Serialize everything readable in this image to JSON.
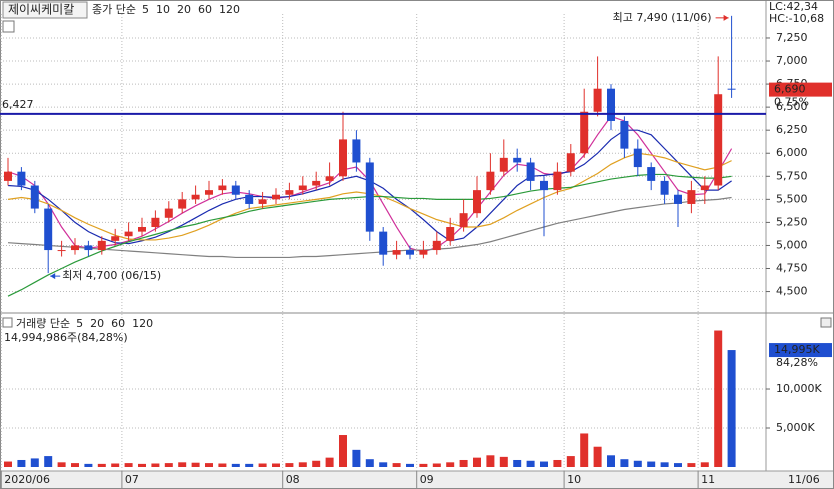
{
  "chart_data": [
    {
      "type": "candlestick",
      "title": "제이씨케미칼",
      "legend_prefix": "종가 단순",
      "categories": [
        "2020/06",
        null,
        null,
        null,
        null,
        null,
        null,
        null,
        null,
        "07",
        null,
        null,
        null,
        null,
        null,
        null,
        null,
        null,
        null,
        null,
        null,
        "08",
        null,
        null,
        null,
        null,
        null,
        null,
        null,
        null,
        null,
        "09",
        null,
        null,
        null,
        null,
        null,
        null,
        null,
        null,
        null,
        null,
        "10",
        null,
        null,
        null,
        null,
        null,
        null,
        null,
        null,
        null,
        "11",
        null,
        null
      ],
      "last_date_label": "11/06",
      "open": [
        5700,
        5800,
        5650,
        5400,
        4950,
        4950,
        5000,
        4950,
        5050,
        5100,
        5150,
        5200,
        5300,
        5400,
        5500,
        5550,
        5600,
        5650,
        5550,
        5450,
        5500,
        5550,
        5600,
        5650,
        5700,
        5750,
        6150,
        5900,
        5150,
        4900,
        4950,
        4900,
        4950,
        5050,
        5200,
        5350,
        5600,
        5800,
        5950,
        5900,
        5700,
        5600,
        5800,
        6000,
        6450,
        6700,
        6350,
        6050,
        5850,
        5700,
        5550,
        5450,
        5600,
        5650,
        6700
      ],
      "high": [
        5950,
        5850,
        5700,
        5450,
        5050,
        5080,
        5050,
        5100,
        5180,
        5250,
        5300,
        5380,
        5480,
        5580,
        5650,
        5700,
        5720,
        5700,
        5600,
        5580,
        5620,
        5680,
        5750,
        5800,
        5900,
        6450,
        6250,
        5950,
        5200,
        5050,
        5000,
        5050,
        5150,
        5300,
        5500,
        5750,
        6000,
        6150,
        6050,
        5950,
        5750,
        5900,
        6100,
        6700,
        7050,
        6750,
        6400,
        6150,
        5900,
        5750,
        5600,
        5700,
        5750,
        7050,
        7490
      ],
      "low": [
        5650,
        5600,
        5350,
        4700,
        4880,
        4900,
        4880,
        4900,
        5000,
        5050,
        5100,
        5150,
        5250,
        5350,
        5450,
        5500,
        5550,
        5500,
        5400,
        5400,
        5450,
        5500,
        5550,
        5600,
        5650,
        5700,
        5800,
        5050,
        4780,
        4850,
        4850,
        4860,
        4900,
        5000,
        5150,
        5300,
        5550,
        5750,
        5800,
        5600,
        5100,
        5550,
        5750,
        5950,
        6400,
        6250,
        5950,
        5750,
        5600,
        5450,
        5200,
        5350,
        5450,
        5600,
        6600
      ],
      "close": [
        5800,
        5650,
        5400,
        4950,
        4950,
        5000,
        4950,
        5050,
        5100,
        5150,
        5200,
        5300,
        5400,
        5500,
        5550,
        5600,
        5650,
        5550,
        5450,
        5500,
        5550,
        5600,
        5650,
        5700,
        5750,
        6150,
        5900,
        5150,
        4900,
        4950,
        4900,
        4950,
        5050,
        5200,
        5350,
        5600,
        5800,
        5950,
        5900,
        5700,
        5600,
        5800,
        6000,
        6450,
        6700,
        6350,
        6050,
        5850,
        5700,
        5550,
        5450,
        5600,
        5650,
        6640,
        6690
      ],
      "up_color": "#e0302b",
      "down_color": "#1f4fd0",
      "series": [
        {
          "name": "5",
          "color": "#d0309a",
          "values": [
            5800,
            5750,
            5650,
            5450,
            5200,
            5000,
            4970,
            4990,
            5010,
            5050,
            5100,
            5180,
            5260,
            5350,
            5430,
            5500,
            5560,
            5580,
            5560,
            5530,
            5510,
            5530,
            5580,
            5630,
            5680,
            5820,
            5850,
            5700,
            5450,
            5200,
            4970,
            4930,
            4980,
            5080,
            5220,
            5400,
            5580,
            5760,
            5880,
            5860,
            5780,
            5760,
            5820,
            5980,
            6200,
            6400,
            6350,
            6200,
            6000,
            5800,
            5600,
            5550,
            5560,
            5800,
            6050
          ]
        },
        {
          "name": "10",
          "color": "#1a2bb0",
          "values": [
            5650,
            5640,
            5600,
            5500,
            5380,
            5250,
            5150,
            5080,
            5030,
            5020,
            5050,
            5090,
            5150,
            5220,
            5300,
            5380,
            5450,
            5500,
            5530,
            5530,
            5520,
            5530,
            5560,
            5600,
            5640,
            5720,
            5750,
            5700,
            5620,
            5500,
            5400,
            5280,
            5150,
            5050,
            5080,
            5200,
            5350,
            5500,
            5650,
            5750,
            5760,
            5780,
            5800,
            5880,
            6000,
            6150,
            6250,
            6250,
            6200,
            6050,
            5900,
            5750,
            5600,
            5600,
            5700
          ]
        },
        {
          "name": "20",
          "color": "#e0a020",
          "values": [
            5500,
            5520,
            5500,
            5450,
            5380,
            5300,
            5230,
            5170,
            5110,
            5070,
            5060,
            5060,
            5080,
            5110,
            5160,
            5220,
            5290,
            5350,
            5400,
            5420,
            5440,
            5460,
            5480,
            5500,
            5520,
            5560,
            5580,
            5560,
            5530,
            5470,
            5400,
            5340,
            5280,
            5240,
            5200,
            5200,
            5230,
            5300,
            5380,
            5450,
            5520,
            5580,
            5620,
            5700,
            5780,
            5880,
            5950,
            6000,
            5980,
            5950,
            5900,
            5860,
            5820,
            5850,
            5920
          ]
        },
        {
          "name": "60",
          "color": "#2a9a3a",
          "values": [
            4450,
            4520,
            4600,
            4680,
            4750,
            4820,
            4880,
            4940,
            4990,
            5040,
            5080,
            5120,
            5160,
            5200,
            5230,
            5270,
            5300,
            5330,
            5370,
            5400,
            5420,
            5440,
            5460,
            5480,
            5500,
            5510,
            5520,
            5530,
            5530,
            5520,
            5510,
            5510,
            5500,
            5500,
            5500,
            5500,
            5510,
            5530,
            5560,
            5590,
            5610,
            5620,
            5630,
            5660,
            5690,
            5720,
            5740,
            5760,
            5770,
            5770,
            5750,
            5740,
            5730,
            5730,
            5750
          ]
        },
        {
          "name": "120",
          "color": "#808080",
          "values": [
            5030,
            5020,
            5010,
            5000,
            4990,
            4980,
            4970,
            4960,
            4950,
            4940,
            4930,
            4920,
            4910,
            4900,
            4890,
            4880,
            4880,
            4870,
            4870,
            4870,
            4870,
            4870,
            4880,
            4880,
            4890,
            4900,
            4910,
            4920,
            4930,
            4940,
            4950,
            4950,
            4960,
            4970,
            4990,
            5010,
            5040,
            5080,
            5120,
            5160,
            5200,
            5240,
            5270,
            5300,
            5330,
            5360,
            5390,
            5410,
            5430,
            5450,
            5460,
            5480,
            5490,
            5500,
            5520
          ]
        }
      ],
      "ylim": [
        4300,
        7510
      ],
      "yticks": [
        {
          "value": 4500,
          "label": "4,500"
        },
        {
          "value": 4750,
          "label": "4,750"
        },
        {
          "value": 5000,
          "label": "5,000"
        },
        {
          "value": 5250,
          "label": "5,250"
        },
        {
          "value": 5500,
          "label": "5,500"
        },
        {
          "value": 5750,
          "label": "5,750"
        },
        {
          "value": 6000,
          "label": "6,000"
        },
        {
          "value": 6250,
          "label": "6,250"
        },
        {
          "value": 6500,
          "label": "6,500"
        },
        {
          "value": 6750,
          "label": "6,750"
        },
        {
          "value": 7000,
          "label": "7,000"
        },
        {
          "value": 7250,
          "label": "7,250"
        }
      ],
      "hline": {
        "value": 6427,
        "label": "6,427",
        "color": "#1a1aa8"
      },
      "annotations": [
        {
          "value": 7490,
          "label": "최고 7,490 (11/06)",
          "kind": "high"
        },
        {
          "value": 4700,
          "label": "최저 4,700 (06/15)",
          "kind": "low"
        }
      ],
      "info_labels": [
        {
          "text": "LC:42,34",
          "color": "#e0302b"
        },
        {
          "text": "HC:-10,68",
          "color": "#1f4fd0"
        }
      ],
      "last_price": {
        "value": 6690,
        "label": "6,690"
      },
      "last_change": "0.75%",
      "grid": true
    },
    {
      "type": "volume",
      "title": "거래량 단순",
      "ma_legend": [
        {
          "name": "5",
          "color": "#d0309a"
        },
        {
          "name": "20",
          "color": "#e0a020"
        },
        {
          "name": "60",
          "color": "#2a9a3a"
        },
        {
          "name": "120",
          "color": "#808080"
        }
      ],
      "summary": "14,994,986주(84,28%)",
      "values": [
        700,
        900,
        1100,
        1400,
        600,
        500,
        400,
        400,
        450,
        500,
        400,
        450,
        500,
        600,
        550,
        500,
        450,
        400,
        400,
        450,
        450,
        500,
        600,
        800,
        1200,
        4100,
        2200,
        1000,
        600,
        500,
        400,
        400,
        450,
        600,
        900,
        1200,
        1500,
        1300,
        900,
        800,
        700,
        900,
        1400,
        4300,
        2600,
        1500,
        1000,
        800,
        700,
        600,
        500,
        500,
        600,
        17500,
        14995
      ],
      "last_volume": {
        "value": 14995,
        "label": "14,995K"
      },
      "last_ratio": "84,28%",
      "ylim": [
        0,
        18850
      ],
      "yticks": [
        {
          "value": 5000,
          "label": "5,000K"
        },
        {
          "value": 10000,
          "label": "10,000K"
        }
      ],
      "grid": true
    }
  ]
}
